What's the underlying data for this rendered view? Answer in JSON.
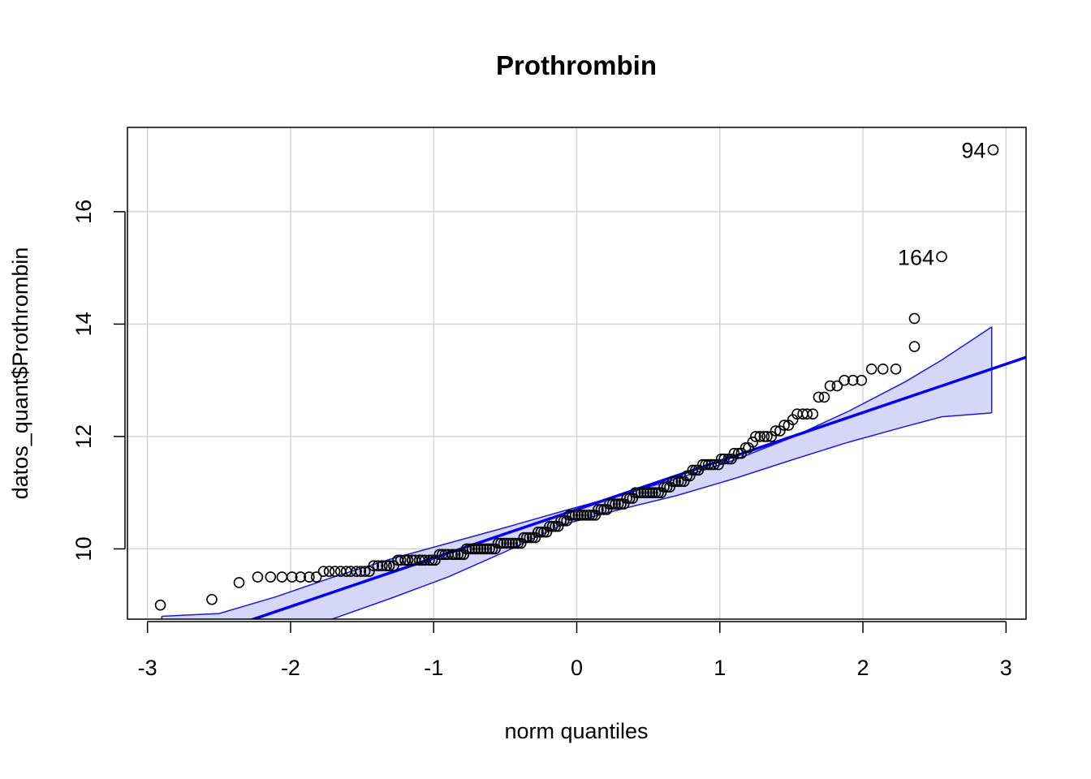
{
  "chart_data": {
    "type": "scatter",
    "title": "Prothrombin",
    "xlabel": "norm quantiles",
    "ylabel": "datos_quant$Prothrombin",
    "xlim": [
      -3.14,
      3.14
    ],
    "ylim": [
      8.75,
      17.5
    ],
    "xticks": [
      -3,
      -2,
      -1,
      0,
      1,
      2,
      3
    ],
    "yticks": [
      10,
      12,
      14,
      16
    ],
    "grid": true,
    "colors": {
      "points": "#000000",
      "reference_line": "#0000ee",
      "envelope_fill": "#d6d6f8",
      "envelope_line": "#1a1add",
      "grid": "#d3d3d3"
    },
    "reference_line": {
      "x": [
        -3.14,
        3.14
      ],
      "y": [
        7.99,
        13.41
      ]
    },
    "envelope": {
      "x": [
        -2.9,
        -2.5,
        -2.1,
        -1.7,
        -1.3,
        -0.9,
        -0.5,
        -0.1,
        0.3,
        0.7,
        1.1,
        1.5,
        1.9,
        2.3,
        2.55,
        2.9
      ],
      "upper": [
        8.8,
        8.85,
        9.15,
        9.5,
        9.82,
        10.1,
        10.38,
        10.67,
        10.95,
        11.25,
        11.58,
        11.98,
        12.45,
        12.98,
        13.36,
        13.95
      ],
      "lower": [
        7.5,
        7.85,
        8.4,
        8.76,
        9.12,
        9.5,
        9.95,
        10.43,
        10.7,
        10.95,
        11.25,
        11.58,
        11.9,
        12.18,
        12.35,
        12.42
      ]
    },
    "points": [
      {
        "x": -2.91,
        "y": 9.0
      },
      {
        "x": -2.55,
        "y": 9.1
      },
      {
        "x": -2.36,
        "y": 9.4
      },
      {
        "x": -2.23,
        "y": 9.5
      },
      {
        "x": -2.14,
        "y": 9.5
      },
      {
        "x": -2.06,
        "y": 9.5
      },
      {
        "x": -1.99,
        "y": 9.5
      },
      {
        "x": -1.93,
        "y": 9.5
      },
      {
        "x": -1.87,
        "y": 9.5
      },
      {
        "x": -1.82,
        "y": 9.5
      },
      {
        "x": -1.77,
        "y": 9.6
      },
      {
        "x": -1.73,
        "y": 9.6
      },
      {
        "x": -1.69,
        "y": 9.6
      },
      {
        "x": -1.65,
        "y": 9.6
      },
      {
        "x": -1.61,
        "y": 9.6
      },
      {
        "x": -1.58,
        "y": 9.6
      },
      {
        "x": -1.54,
        "y": 9.6
      },
      {
        "x": -1.51,
        "y": 9.6
      },
      {
        "x": -1.48,
        "y": 9.6
      },
      {
        "x": -1.45,
        "y": 9.6
      },
      {
        "x": -1.42,
        "y": 9.7
      },
      {
        "x": -1.39,
        "y": 9.7
      },
      {
        "x": -1.36,
        "y": 9.7
      },
      {
        "x": -1.33,
        "y": 9.7
      },
      {
        "x": -1.31,
        "y": 9.7
      },
      {
        "x": -1.28,
        "y": 9.7
      },
      {
        "x": -1.25,
        "y": 9.8
      },
      {
        "x": -1.23,
        "y": 9.8
      },
      {
        "x": -1.2,
        "y": 9.8
      },
      {
        "x": -1.18,
        "y": 9.8
      },
      {
        "x": -1.15,
        "y": 9.8
      },
      {
        "x": -1.13,
        "y": 9.8
      },
      {
        "x": -1.1,
        "y": 9.8
      },
      {
        "x": -1.08,
        "y": 9.8
      },
      {
        "x": -1.06,
        "y": 9.8
      },
      {
        "x": -1.03,
        "y": 9.8
      },
      {
        "x": -1.01,
        "y": 9.8
      },
      {
        "x": -0.99,
        "y": 9.8
      },
      {
        "x": -0.96,
        "y": 9.9
      },
      {
        "x": -0.94,
        "y": 9.9
      },
      {
        "x": -0.92,
        "y": 9.9
      },
      {
        "x": -0.9,
        "y": 9.9
      },
      {
        "x": -0.87,
        "y": 9.9
      },
      {
        "x": -0.85,
        "y": 9.9
      },
      {
        "x": -0.83,
        "y": 9.9
      },
      {
        "x": -0.81,
        "y": 9.9
      },
      {
        "x": -0.79,
        "y": 9.9
      },
      {
        "x": -0.77,
        "y": 10.0
      },
      {
        "x": -0.75,
        "y": 10.0
      },
      {
        "x": -0.73,
        "y": 10.0
      },
      {
        "x": -0.71,
        "y": 10.0
      },
      {
        "x": -0.69,
        "y": 10.0
      },
      {
        "x": -0.67,
        "y": 10.0
      },
      {
        "x": -0.65,
        "y": 10.0
      },
      {
        "x": -0.63,
        "y": 10.0
      },
      {
        "x": -0.61,
        "y": 10.0
      },
      {
        "x": -0.59,
        "y": 10.0
      },
      {
        "x": -0.57,
        "y": 10.0
      },
      {
        "x": -0.55,
        "y": 10.1
      },
      {
        "x": -0.53,
        "y": 10.1
      },
      {
        "x": -0.51,
        "y": 10.1
      },
      {
        "x": -0.49,
        "y": 10.1
      },
      {
        "x": -0.47,
        "y": 10.1
      },
      {
        "x": -0.45,
        "y": 10.1
      },
      {
        "x": -0.43,
        "y": 10.1
      },
      {
        "x": -0.41,
        "y": 10.1
      },
      {
        "x": -0.39,
        "y": 10.1
      },
      {
        "x": -0.37,
        "y": 10.2
      },
      {
        "x": -0.35,
        "y": 10.2
      },
      {
        "x": -0.33,
        "y": 10.2
      },
      {
        "x": -0.31,
        "y": 10.2
      },
      {
        "x": -0.29,
        "y": 10.2
      },
      {
        "x": -0.27,
        "y": 10.3
      },
      {
        "x": -0.25,
        "y": 10.3
      },
      {
        "x": -0.23,
        "y": 10.3
      },
      {
        "x": -0.21,
        "y": 10.3
      },
      {
        "x": -0.19,
        "y": 10.4
      },
      {
        "x": -0.17,
        "y": 10.4
      },
      {
        "x": -0.15,
        "y": 10.4
      },
      {
        "x": -0.13,
        "y": 10.4
      },
      {
        "x": -0.11,
        "y": 10.5
      },
      {
        "x": -0.09,
        "y": 10.5
      },
      {
        "x": -0.07,
        "y": 10.5
      },
      {
        "x": -0.05,
        "y": 10.6
      },
      {
        "x": -0.03,
        "y": 10.6
      },
      {
        "x": -0.01,
        "y": 10.6
      },
      {
        "x": 0.01,
        "y": 10.6
      },
      {
        "x": 0.03,
        "y": 10.6
      },
      {
        "x": 0.05,
        "y": 10.6
      },
      {
        "x": 0.07,
        "y": 10.6
      },
      {
        "x": 0.09,
        "y": 10.6
      },
      {
        "x": 0.11,
        "y": 10.6
      },
      {
        "x": 0.13,
        "y": 10.6
      },
      {
        "x": 0.15,
        "y": 10.7
      },
      {
        "x": 0.17,
        "y": 10.7
      },
      {
        "x": 0.19,
        "y": 10.7
      },
      {
        "x": 0.21,
        "y": 10.7
      },
      {
        "x": 0.23,
        "y": 10.8
      },
      {
        "x": 0.25,
        "y": 10.8
      },
      {
        "x": 0.27,
        "y": 10.8
      },
      {
        "x": 0.29,
        "y": 10.8
      },
      {
        "x": 0.31,
        "y": 10.8
      },
      {
        "x": 0.33,
        "y": 10.8
      },
      {
        "x": 0.35,
        "y": 10.9
      },
      {
        "x": 0.37,
        "y": 10.9
      },
      {
        "x": 0.39,
        "y": 10.9
      },
      {
        "x": 0.41,
        "y": 11.0
      },
      {
        "x": 0.43,
        "y": 11.0
      },
      {
        "x": 0.45,
        "y": 11.0
      },
      {
        "x": 0.47,
        "y": 11.0
      },
      {
        "x": 0.49,
        "y": 11.0
      },
      {
        "x": 0.51,
        "y": 11.0
      },
      {
        "x": 0.53,
        "y": 11.0
      },
      {
        "x": 0.55,
        "y": 11.0
      },
      {
        "x": 0.57,
        "y": 11.0
      },
      {
        "x": 0.59,
        "y": 11.0
      },
      {
        "x": 0.61,
        "y": 11.1
      },
      {
        "x": 0.63,
        "y": 11.1
      },
      {
        "x": 0.65,
        "y": 11.1
      },
      {
        "x": 0.67,
        "y": 11.2
      },
      {
        "x": 0.69,
        "y": 11.2
      },
      {
        "x": 0.71,
        "y": 11.2
      },
      {
        "x": 0.73,
        "y": 11.2
      },
      {
        "x": 0.75,
        "y": 11.2
      },
      {
        "x": 0.77,
        "y": 11.3
      },
      {
        "x": 0.79,
        "y": 11.3
      },
      {
        "x": 0.81,
        "y": 11.4
      },
      {
        "x": 0.83,
        "y": 11.4
      },
      {
        "x": 0.85,
        "y": 11.4
      },
      {
        "x": 0.88,
        "y": 11.5
      },
      {
        "x": 0.9,
        "y": 11.5
      },
      {
        "x": 0.92,
        "y": 11.5
      },
      {
        "x": 0.94,
        "y": 11.5
      },
      {
        "x": 0.96,
        "y": 11.5
      },
      {
        "x": 0.99,
        "y": 11.5
      },
      {
        "x": 1.01,
        "y": 11.6
      },
      {
        "x": 1.03,
        "y": 11.6
      },
      {
        "x": 1.06,
        "y": 11.6
      },
      {
        "x": 1.08,
        "y": 11.6
      },
      {
        "x": 1.1,
        "y": 11.7
      },
      {
        "x": 1.13,
        "y": 11.7
      },
      {
        "x": 1.15,
        "y": 11.7
      },
      {
        "x": 1.18,
        "y": 11.8
      },
      {
        "x": 1.2,
        "y": 11.8
      },
      {
        "x": 1.23,
        "y": 11.9
      },
      {
        "x": 1.25,
        "y": 12.0
      },
      {
        "x": 1.28,
        "y": 12.0
      },
      {
        "x": 1.31,
        "y": 12.0
      },
      {
        "x": 1.33,
        "y": 12.0
      },
      {
        "x": 1.36,
        "y": 12.0
      },
      {
        "x": 1.39,
        "y": 12.1
      },
      {
        "x": 1.42,
        "y": 12.1
      },
      {
        "x": 1.45,
        "y": 12.2
      },
      {
        "x": 1.48,
        "y": 12.2
      },
      {
        "x": 1.51,
        "y": 12.3
      },
      {
        "x": 1.54,
        "y": 12.4
      },
      {
        "x": 1.58,
        "y": 12.4
      },
      {
        "x": 1.61,
        "y": 12.4
      },
      {
        "x": 1.65,
        "y": 12.4
      },
      {
        "x": 1.69,
        "y": 12.7
      },
      {
        "x": 1.73,
        "y": 12.7
      },
      {
        "x": 1.77,
        "y": 12.9
      },
      {
        "x": 1.82,
        "y": 12.9
      },
      {
        "x": 1.87,
        "y": 13.0
      },
      {
        "x": 1.93,
        "y": 13.0
      },
      {
        "x": 1.99,
        "y": 13.0
      },
      {
        "x": 2.06,
        "y": 13.2
      },
      {
        "x": 2.14,
        "y": 13.2
      },
      {
        "x": 2.23,
        "y": 13.2
      },
      {
        "x": 2.36,
        "y": 13.6
      },
      {
        "x": 2.36,
        "y": 14.1
      },
      {
        "x": 2.55,
        "y": 15.2,
        "label": "164"
      },
      {
        "x": 2.91,
        "y": 17.1,
        "label": "94"
      }
    ]
  }
}
